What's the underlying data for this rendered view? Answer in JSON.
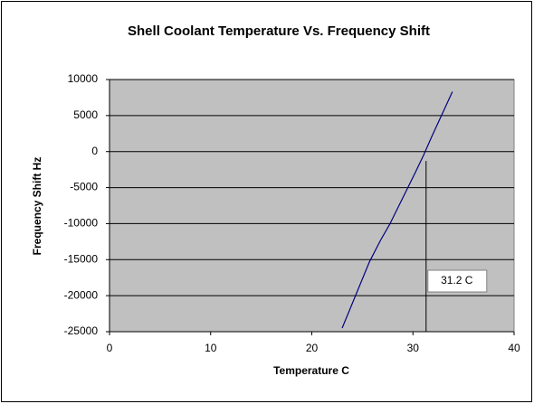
{
  "chart_data": {
    "type": "line",
    "title": "Shell Coolant Temperature Vs. Frequency Shift",
    "x_label": "Temperature C",
    "y_label": "Frequency Shift  Hz",
    "series": [
      {
        "name": "Frequency Shift",
        "color": "#000080",
        "x": [
          23,
          25.7,
          26.8,
          27.7,
          30.2,
          31.05,
          31.9,
          33.9
        ],
        "values": [
          -24500,
          -15300,
          -12300,
          -10100,
          -3000,
          -500,
          2200,
          8300
        ]
      }
    ],
    "xlim": [
      0,
      40
    ],
    "xticks": [
      0,
      10,
      20,
      30,
      40
    ],
    "ylim": [
      -25000,
      10000
    ],
    "yticks": [
      -25000,
      -20000,
      -15000,
      -10000,
      -5000,
      0,
      5000,
      10000
    ],
    "grid": true,
    "annotation": {
      "text": "31.2 C",
      "x": 31.3,
      "y": -1300
    }
  }
}
